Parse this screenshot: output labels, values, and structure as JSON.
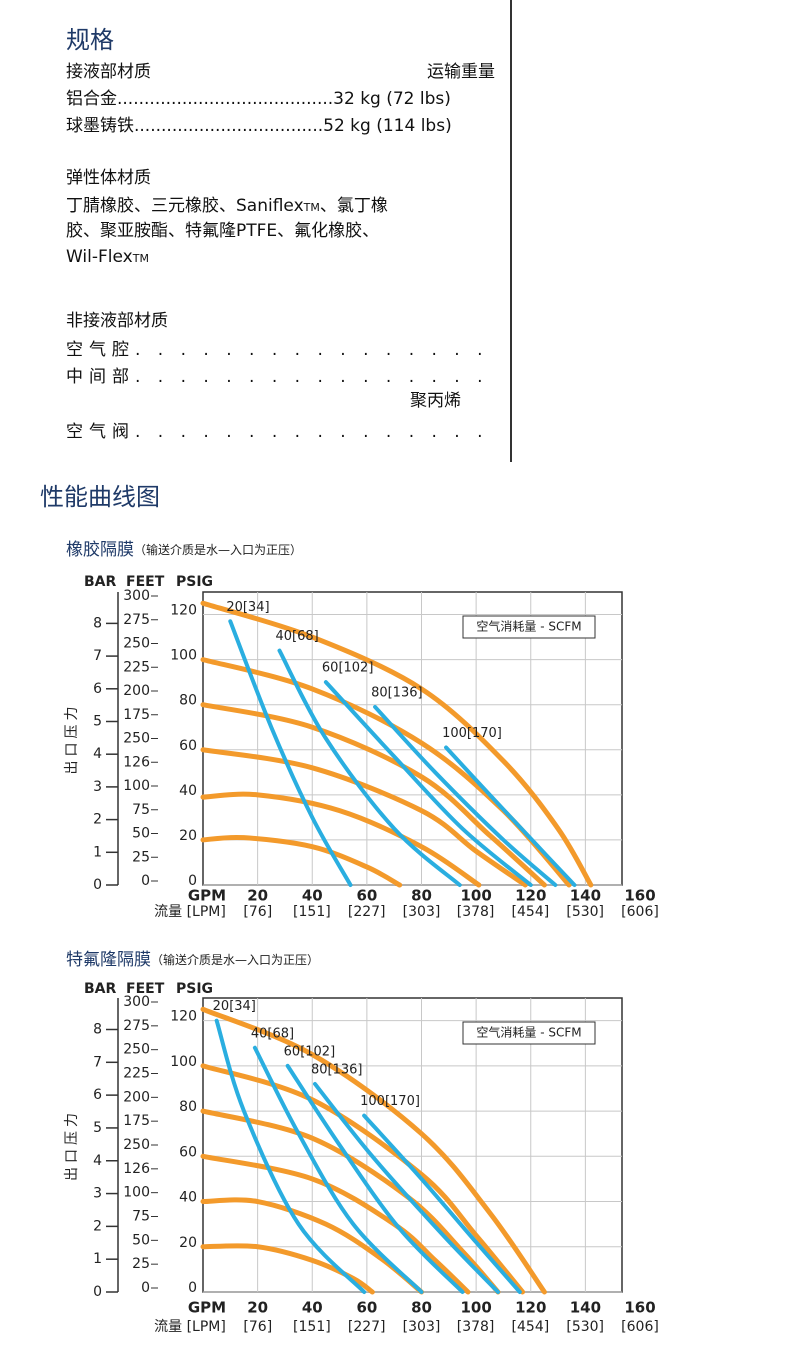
{
  "spec": {
    "title": "规格",
    "wetted": "接液部材质",
    "shipping": "运输重量",
    "aluminum": "铝合金........................................32 kg (72 lbs)",
    "iron": "球墨铸铁...................................52 kg (114 lbs)",
    "elastomer": {
      "title": "弹性体材质",
      "lines": [
        [
          "丁腈橡胶、三元橡胶、Saniflex",
          "TM",
          "、氯丁橡"
        ],
        [
          "胶、聚亚胺酯、特氟隆PTFE、氟化橡胶、"
        ],
        [
          "Wil-Flex",
          "TM"
        ]
      ]
    },
    "nonwetted": {
      "title": "非接液部材质",
      "air_chamber": "空气腔. . . . . . . . . . . . . . . .",
      "center": "中间部. . . . . . . . . . . . . . . .",
      "material": "聚丙烯",
      "air_valve": "空气阀. . . . . . . . . . . . . . . ."
    }
  },
  "section_title": "性能曲线图",
  "chart_data": [
    {
      "type": "line",
      "title": "橡胶隔膜",
      "subtitle": "（输送介质是水—入口为正压）",
      "legend_title": "空气消耗量 - SCFM",
      "axis_title": "出口压力",
      "xlabel": "GPM",
      "x2label": "流量 [LPM]",
      "ylabel": "PSIG",
      "y2label": "BAR",
      "y3label": "FEET",
      "xlim": [
        0,
        160
      ],
      "xticks": [
        20,
        40,
        60,
        80,
        100,
        120,
        140,
        160
      ],
      "x2lim": [
        0,
        606
      ],
      "x2ticks": [
        {
          "value": 76,
          "label": "[76]"
        },
        {
          "value": 151,
          "label": "[151]"
        },
        {
          "value": 227,
          "label": "[227]"
        },
        {
          "value": 303,
          "label": "[303]"
        },
        {
          "value": 378,
          "label": "[378]"
        },
        {
          "value": 454,
          "label": "[454]"
        },
        {
          "value": 530,
          "label": "[530]"
        },
        {
          "value": 606,
          "label": "[606]"
        }
      ],
      "ylim": [
        0,
        130
      ],
      "yticks": [
        0,
        20,
        40,
        60,
        80,
        100,
        120
      ],
      "y2lim": [
        0,
        8.96
      ],
      "y2ticks": [
        0,
        1,
        2,
        3,
        4,
        5,
        6,
        7,
        8
      ],
      "feet_labels": [
        "300",
        "275",
        "250",
        "225",
        "200",
        "175",
        "250",
        "126",
        "100",
        "75",
        "50",
        "25",
        "0"
      ],
      "grid": true,
      "series": [
        {
          "color": "#f39a2b",
          "x": [
            0,
            40,
            80,
            110,
            130,
            142
          ],
          "values": [
            125,
            110,
            87,
            55,
            25,
            0
          ]
        },
        {
          "color": "#f39a2b",
          "x": [
            0,
            40,
            80,
            110,
            134
          ],
          "values": [
            100,
            87,
            63,
            33,
            0
          ]
        },
        {
          "color": "#f39a2b",
          "x": [
            0,
            40,
            80,
            105,
            125
          ],
          "values": [
            80,
            70,
            48,
            22,
            0
          ]
        },
        {
          "color": "#f39a2b",
          "x": [
            0,
            40,
            80,
            100,
            118
          ],
          "values": [
            60,
            52,
            33,
            15,
            0
          ]
        },
        {
          "color": "#f39a2b",
          "x": [
            0,
            20,
            50,
            80,
            101
          ],
          "values": [
            39,
            40,
            33,
            17,
            0
          ]
        },
        {
          "color": "#f39a2b",
          "x": [
            0,
            15,
            40,
            60,
            72
          ],
          "values": [
            20,
            21,
            17,
            8,
            0
          ]
        },
        {
          "name": "20[34]",
          "color": "#2aaee0",
          "x": [
            10,
            25,
            40,
            54
          ],
          "values": [
            117,
            70,
            30,
            0
          ]
        },
        {
          "name": "40[68]",
          "color": "#2aaee0",
          "x": [
            28,
            45,
            70,
            94
          ],
          "values": [
            104,
            65,
            25,
            0
          ]
        },
        {
          "name": "60[102]",
          "color": "#2aaee0",
          "x": [
            45,
            70,
            95,
            120
          ],
          "values": [
            90,
            57,
            25,
            0
          ]
        },
        {
          "name": "80[136]",
          "color": "#2aaee0",
          "x": [
            63,
            85,
            110,
            129
          ],
          "values": [
            79,
            50,
            20,
            0
          ]
        },
        {
          "name": "100[170]",
          "color": "#2aaee0",
          "x": [
            89,
            105,
            122,
            136
          ],
          "values": [
            61,
            40,
            18,
            0
          ]
        }
      ]
    },
    {
      "type": "line",
      "title": "特氟隆隔膜",
      "subtitle": "（输送介质是水—入口为正压）",
      "legend_title": "空气消耗量 - SCFM",
      "axis_title": "出口压力",
      "xlabel": "GPM",
      "x2label": "流量 [LPM]",
      "ylabel": "PSIG",
      "y2label": "BAR",
      "y3label": "FEET",
      "xlim": [
        0,
        160
      ],
      "xticks": [
        20,
        40,
        60,
        80,
        100,
        120,
        140,
        160
      ],
      "x2lim": [
        0,
        606
      ],
      "x2ticks": [
        {
          "value": 76,
          "label": "[76]"
        },
        {
          "value": 151,
          "label": "[151]"
        },
        {
          "value": 227,
          "label": "[227]"
        },
        {
          "value": 303,
          "label": "[303]"
        },
        {
          "value": 378,
          "label": "[378]"
        },
        {
          "value": 454,
          "label": "[454]"
        },
        {
          "value": 530,
          "label": "[530]"
        },
        {
          "value": 606,
          "label": "[606]"
        }
      ],
      "ylim": [
        0,
        130
      ],
      "yticks": [
        0,
        20,
        40,
        60,
        80,
        100,
        120
      ],
      "y2lim": [
        0,
        8.96
      ],
      "y2ticks": [
        0,
        1,
        2,
        3,
        4,
        5,
        6,
        7,
        8
      ],
      "feet_labels": [
        "300",
        "275",
        "250",
        "225",
        "200",
        "175",
        "250",
        "126",
        "100",
        "75",
        "50",
        "25",
        "0"
      ],
      "grid": true,
      "series": [
        {
          "color": "#f39a2b",
          "x": [
            0,
            40,
            80,
            105,
            125
          ],
          "values": [
            125,
            105,
            70,
            35,
            0
          ]
        },
        {
          "color": "#f39a2b",
          "x": [
            0,
            40,
            80,
            100,
            117
          ],
          "values": [
            100,
            85,
            52,
            25,
            0
          ]
        },
        {
          "color": "#f39a2b",
          "x": [
            0,
            40,
            75,
            95,
            108
          ],
          "values": [
            80,
            68,
            42,
            18,
            0
          ]
        },
        {
          "color": "#f39a2b",
          "x": [
            0,
            40,
            70,
            85,
            97
          ],
          "values": [
            60,
            50,
            30,
            14,
            0
          ]
        },
        {
          "color": "#f39a2b",
          "x": [
            0,
            20,
            45,
            65,
            80
          ],
          "values": [
            40,
            40,
            30,
            15,
            0
          ]
        },
        {
          "color": "#f39a2b",
          "x": [
            0,
            20,
            40,
            55,
            62
          ],
          "values": [
            20,
            20,
            14,
            6,
            0
          ]
        },
        {
          "name": "20[34]",
          "color": "#2aaee0",
          "x": [
            5,
            15,
            35,
            59
          ],
          "values": [
            120,
            80,
            30,
            0
          ]
        },
        {
          "name": "40[68]",
          "color": "#2aaee0",
          "x": [
            19,
            35,
            55,
            80
          ],
          "values": [
            108,
            70,
            30,
            0
          ]
        },
        {
          "name": "60[102]",
          "color": "#2aaee0",
          "x": [
            31,
            50,
            72,
            95
          ],
          "values": [
            100,
            65,
            28,
            0
          ]
        },
        {
          "name": "80[136]",
          "color": "#2aaee0",
          "x": [
            41,
            62,
            88,
            108
          ],
          "values": [
            92,
            60,
            25,
            0
          ]
        },
        {
          "name": "100[170]",
          "color": "#2aaee0",
          "x": [
            59,
            80,
            100,
            116
          ],
          "values": [
            78,
            50,
            22,
            0
          ]
        }
      ]
    }
  ]
}
